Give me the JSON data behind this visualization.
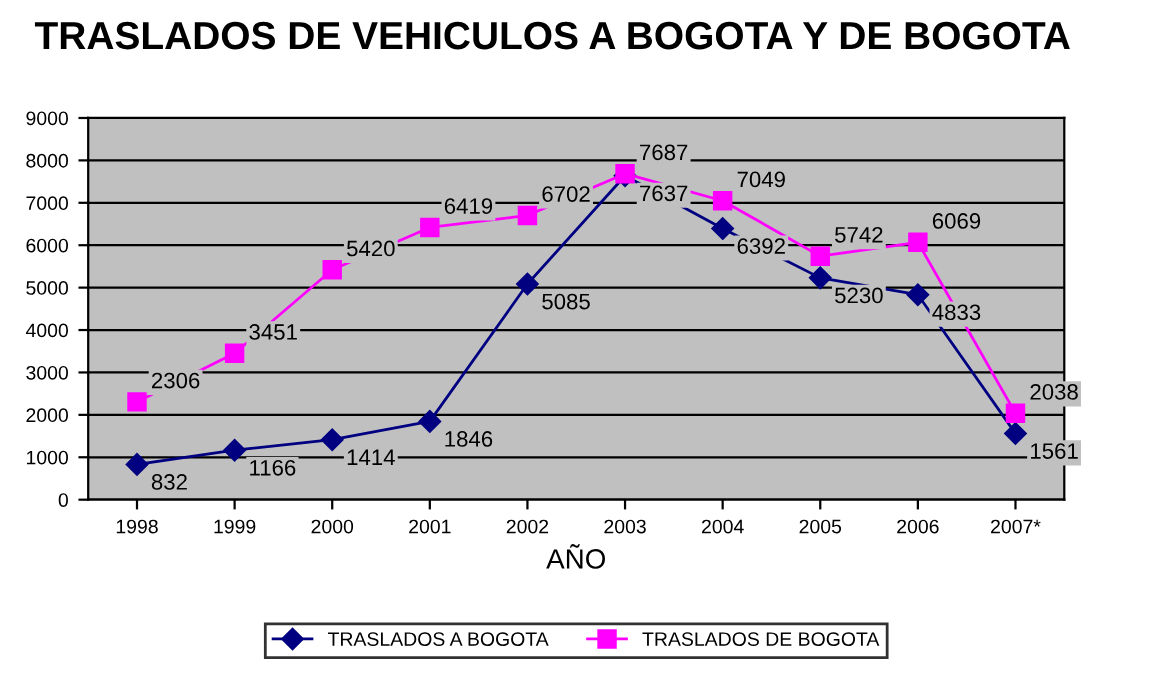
{
  "chart_data": {
    "type": "line",
    "title": "TRASLADOS DE VEHICULOS A BOGOTA Y DE BOGOTA",
    "xlabel": "AÑO",
    "categories": [
      "1998",
      "1999",
      "2000",
      "2001",
      "2002",
      "2003",
      "2004",
      "2005",
      "2006",
      "2007*"
    ],
    "series": [
      {
        "name": "TRASLADOS A BOGOTA",
        "color": "#000080",
        "marker": "diamond",
        "values": [
          832,
          1166,
          1414,
          1846,
          5085,
          7637,
          6392,
          5230,
          4833,
          1561
        ]
      },
      {
        "name": "TRASLADOS DE BOGOTA",
        "color": "#ff00ff",
        "marker": "square",
        "values": [
          2306,
          3451,
          5420,
          6419,
          6702,
          7687,
          7049,
          5742,
          6069,
          2038
        ]
      }
    ],
    "ylim": [
      0,
      9000
    ],
    "yticks": [
      0,
      1000,
      2000,
      3000,
      4000,
      5000,
      6000,
      7000,
      8000,
      9000
    ],
    "grid": "y",
    "legend": "bottom",
    "data_labels": true,
    "line_style": "solid"
  }
}
